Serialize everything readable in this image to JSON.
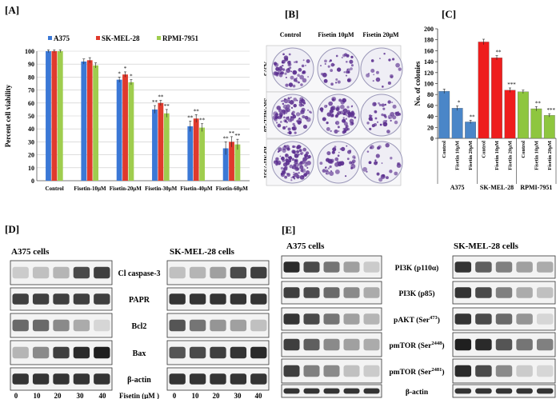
{
  "panels": {
    "a": "[A]",
    "b": "[B]",
    "c": "[C]",
    "d": "[D]",
    "e": "[E]"
  },
  "chart_data": [
    {
      "type": "bar",
      "panel": "A",
      "ylabel": "Percent cell viability",
      "ylim": [
        0,
        100
      ],
      "yticks": [
        0,
        10,
        20,
        30,
        40,
        50,
        60,
        70,
        80,
        90,
        100
      ],
      "grid": true,
      "legend_position": "top",
      "categories": [
        "Control",
        "Fisetin-10μM",
        "Fisetin-20μM",
        "Fisetin-30μM",
        "Fisetin-40μM",
        "Fisetin-60μM"
      ],
      "series": [
        {
          "name": "A375",
          "color": "#3b78d6",
          "values": [
            100,
            92,
            78,
            55,
            42,
            25
          ],
          "errors": [
            1,
            2,
            2,
            3,
            4,
            5
          ],
          "stars": [
            "",
            "",
            "*",
            "**",
            "**",
            "**"
          ]
        },
        {
          "name": "SK-MEL-28",
          "color": "#e03a2d",
          "values": [
            100,
            93,
            82,
            60,
            48,
            30
          ],
          "errors": [
            1,
            2,
            2,
            2,
            3,
            4
          ],
          "stars": [
            "",
            "",
            "*",
            "**",
            "**",
            "**"
          ]
        },
        {
          "name": "RPMI-7951",
          "color": "#9fcd4e",
          "values": [
            100,
            89,
            76,
            52,
            41,
            28
          ],
          "errors": [
            1,
            2,
            2,
            3,
            3,
            4
          ],
          "stars": [
            "",
            "",
            "*",
            "**",
            "**",
            "**"
          ]
        }
      ]
    },
    {
      "type": "bar",
      "panel": "C",
      "ylabel": "No. of colonies",
      "ylim": [
        0,
        200
      ],
      "yticks": [
        0,
        20,
        40,
        60,
        80,
        100,
        120,
        140,
        160,
        180,
        200
      ],
      "categories": [
        "Control",
        "Fisetin 10μM",
        "Fisetin 20μM",
        "Control",
        "Fisetin 10μM",
        "Fisetin 20μM",
        "Control",
        "Fisetin 10μM",
        "Fisetin 20μM"
      ],
      "groups": [
        "A375",
        "SK-MEL-28",
        "RPMI-7951"
      ],
      "colors": [
        "#4a86c8",
        "#ee1d1d",
        "#8ec63f"
      ],
      "values": [
        86,
        55,
        30,
        176,
        147,
        88,
        85,
        54,
        42
      ],
      "errors": [
        4,
        4,
        3,
        5,
        4,
        4,
        3,
        4,
        3
      ],
      "stars": [
        "",
        "*",
        "**",
        "",
        "**",
        "***",
        "",
        "**",
        "***"
      ]
    }
  ],
  "colony": {
    "columns": [
      "Control",
      "Fisetin 10μM",
      "Fisetin 20μM"
    ],
    "rows": [
      "A375",
      "SK-MEL-28",
      "RPMI-7951"
    ]
  },
  "blot_d": {
    "left_title": "A375 cells",
    "right_title": "SK-MEL-28 cells",
    "proteins": [
      "Cl caspase-3",
      "PAPR",
      "Bcl2",
      "Bax",
      "β-actin"
    ],
    "doses": [
      "0",
      "10",
      "20",
      "30",
      "40"
    ],
    "dose_label": "Fisetin (μM )",
    "left_intensity": [
      [
        0.15,
        0.2,
        0.25,
        0.75,
        0.8
      ],
      [
        0.8,
        0.8,
        0.8,
        0.8,
        0.8
      ],
      [
        0.6,
        0.6,
        0.45,
        0.3,
        0.1
      ],
      [
        0.25,
        0.45,
        0.8,
        0.9,
        0.95
      ],
      [
        0.85,
        0.85,
        0.85,
        0.85,
        0.85
      ]
    ],
    "right_intensity": [
      [
        0.2,
        0.25,
        0.35,
        0.75,
        0.8
      ],
      [
        0.85,
        0.85,
        0.85,
        0.85,
        0.85
      ],
      [
        0.7,
        0.55,
        0.4,
        0.35,
        0.2
      ],
      [
        0.7,
        0.75,
        0.8,
        0.85,
        0.9
      ],
      [
        0.85,
        0.85,
        0.85,
        0.85,
        0.85
      ]
    ]
  },
  "blot_e": {
    "left_title": "A375 cells",
    "right_title": "SK-MEL-28 cells",
    "proteins": [
      {
        "main": "PI3K (p110α)",
        "sup": ""
      },
      {
        "main": "PI3K (p85)",
        "sup": ""
      },
      {
        "main": "pAKT (Ser",
        "sup": "473",
        "close": ")"
      },
      {
        "main": "pmTOR (Ser",
        "sup": "2448",
        "close": ")"
      },
      {
        "main": "pmTOR (Ser",
        "sup": "2481",
        "close": ")"
      },
      {
        "main": "β-actin",
        "sup": ""
      }
    ],
    "doses": [
      "0",
      "10",
      "20",
      "30",
      "40"
    ],
    "dose_label": "Fisetin (μM)",
    "left_intensity": [
      [
        0.9,
        0.75,
        0.55,
        0.35,
        0.15
      ],
      [
        0.8,
        0.75,
        0.6,
        0.45,
        0.3
      ],
      [
        0.85,
        0.75,
        0.55,
        0.35,
        0.25
      ],
      [
        0.8,
        0.65,
        0.45,
        0.35,
        0.3
      ],
      [
        0.8,
        0.5,
        0.45,
        0.2,
        0.15
      ],
      [
        0.85,
        0.85,
        0.85,
        0.85,
        0.85
      ]
    ],
    "right_intensity": [
      [
        0.85,
        0.65,
        0.5,
        0.35,
        0.3
      ],
      [
        0.85,
        0.75,
        0.5,
        0.3,
        0.2
      ],
      [
        0.85,
        0.75,
        0.6,
        0.4,
        0.1
      ],
      [
        0.95,
        0.9,
        0.7,
        0.55,
        0.5
      ],
      [
        0.9,
        0.75,
        0.45,
        0.15,
        0.1
      ],
      [
        0.85,
        0.85,
        0.85,
        0.85,
        0.85
      ]
    ]
  }
}
